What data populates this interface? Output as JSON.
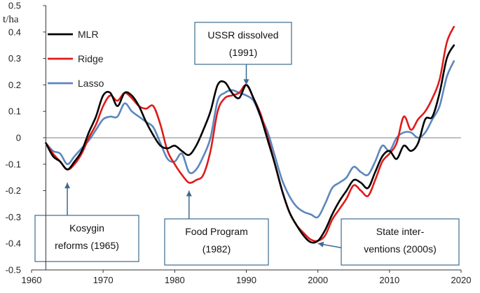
{
  "chart_data": {
    "type": "line",
    "title": "",
    "xlabel": "",
    "ylabel": "t/ha",
    "xlim": [
      1960,
      2020
    ],
    "ylim": [
      -0.5,
      0.5
    ],
    "x_ticks": [
      1960,
      1970,
      1980,
      1990,
      2000,
      2010,
      2020
    ],
    "y_ticks": [
      "-0.5",
      "-0.4",
      "-0.3",
      "-0.2",
      "-0.1",
      "0",
      "0.1",
      "0.2",
      "0.3",
      "0.4",
      "0.5"
    ],
    "grid": false,
    "legend_position": "top-left",
    "x": [
      1962,
      1963,
      1964,
      1965,
      1966,
      1967,
      1968,
      1969,
      1970,
      1971,
      1972,
      1973,
      1974,
      1975,
      1976,
      1977,
      1978,
      1979,
      1980,
      1981,
      1982,
      1983,
      1984,
      1985,
      1986,
      1987,
      1988,
      1989,
      1990,
      1991,
      1992,
      1993,
      1994,
      1995,
      1996,
      1997,
      1998,
      1999,
      2000,
      2001,
      2002,
      2003,
      2004,
      2005,
      2006,
      2007,
      2008,
      2009,
      2010,
      2011,
      2012,
      2013,
      2014,
      2015,
      2016,
      2017,
      2018,
      2019
    ],
    "series": [
      {
        "name": "MLR",
        "color": "#000000",
        "values": [
          -0.02,
          -0.07,
          -0.09,
          -0.12,
          -0.09,
          -0.05,
          0.02,
          0.08,
          0.16,
          0.17,
          0.12,
          0.17,
          0.16,
          0.12,
          0.06,
          0.01,
          -0.03,
          -0.04,
          -0.03,
          -0.05,
          -0.065,
          -0.03,
          0.03,
          0.1,
          0.2,
          0.21,
          0.17,
          0.15,
          0.2,
          0.15,
          0.08,
          -0.01,
          -0.1,
          -0.2,
          -0.28,
          -0.33,
          -0.37,
          -0.395,
          -0.39,
          -0.35,
          -0.29,
          -0.24,
          -0.2,
          -0.16,
          -0.17,
          -0.19,
          -0.13,
          -0.07,
          -0.05,
          -0.08,
          -0.03,
          -0.05,
          -0.02,
          0.07,
          0.08,
          0.17,
          0.3,
          0.35
        ]
      },
      {
        "name": "Ridge",
        "color": "#e01a1a",
        "values": [
          -0.02,
          -0.06,
          -0.09,
          -0.12,
          -0.1,
          -0.06,
          0.0,
          0.05,
          0.12,
          0.16,
          0.14,
          0.17,
          0.15,
          0.12,
          0.11,
          0.12,
          0.05,
          -0.05,
          -0.1,
          -0.14,
          -0.17,
          -0.16,
          -0.14,
          -0.05,
          0.1,
          0.15,
          0.16,
          0.17,
          0.2,
          0.15,
          0.09,
          0.0,
          -0.1,
          -0.2,
          -0.28,
          -0.33,
          -0.36,
          -0.385,
          -0.39,
          -0.37,
          -0.31,
          -0.27,
          -0.23,
          -0.18,
          -0.2,
          -0.22,
          -0.16,
          -0.09,
          -0.06,
          -0.02,
          0.08,
          0.03,
          0.07,
          0.1,
          0.15,
          0.22,
          0.36,
          0.42
        ]
      },
      {
        "name": "Lasso",
        "color": "#5b87bd",
        "values": [
          -0.02,
          -0.05,
          -0.06,
          -0.1,
          -0.07,
          -0.04,
          -0.01,
          0.03,
          0.07,
          0.08,
          0.08,
          0.13,
          0.1,
          0.08,
          0.06,
          0.04,
          -0.02,
          -0.08,
          -0.09,
          -0.06,
          -0.13,
          -0.12,
          -0.07,
          0.0,
          0.14,
          0.17,
          0.18,
          0.17,
          0.16,
          0.14,
          0.08,
          0.02,
          -0.07,
          -0.16,
          -0.22,
          -0.26,
          -0.28,
          -0.29,
          -0.3,
          -0.25,
          -0.19,
          -0.17,
          -0.15,
          -0.11,
          -0.13,
          -0.14,
          -0.09,
          -0.03,
          -0.05,
          0.0,
          0.02,
          0.02,
          0.0,
          0.02,
          0.07,
          0.12,
          0.23,
          0.29
        ]
      }
    ],
    "annotations": [
      {
        "lines": [
          "USSR dissolved",
          "(1991)"
        ],
        "year": 1990,
        "target_value": 0.2
      },
      {
        "lines": [
          "Kosygin",
          "reforms (1965)"
        ],
        "year": 1965,
        "target_value": -0.17
      },
      {
        "lines": [
          "Food Program",
          "(1982)"
        ],
        "year": 1982,
        "target_value": -0.2
      },
      {
        "lines": [
          "State inter-",
          "ventions (2000s)"
        ],
        "year": 2000,
        "target_value": -0.4
      }
    ]
  }
}
